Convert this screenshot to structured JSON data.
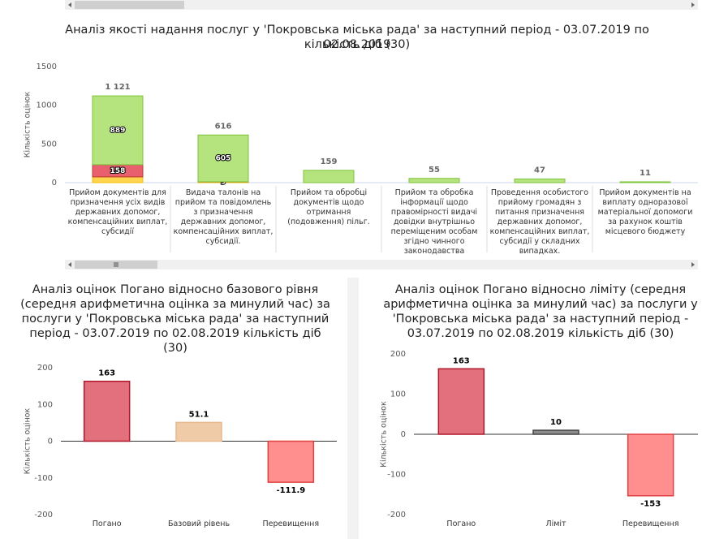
{
  "chart_data": [
    {
      "type": "stacked_bar",
      "title": "Аналіз якості надання послуг у 'Покровська міська рада' за наступний період - 03.07.2019 по 02.08.2019",
      "subtitle": "кількість діб (30)",
      "y_label": "Кількість оцінок",
      "categories": [
        "Прийом документів для призначення усіх видів державних допомог, компенсаційних виплат, субсидії",
        "Видача талонів на прийом та повідомлень з призначення державних допомог, компенсаційних виплат, субсидії.",
        "Прийом та обробці документів щодо отримання (подовження) пільг.",
        "Прийом та обробка інформації щодо правомірності видачі довідки внутрішньо переміщеним особам згідно чинного законодавства",
        "Проведення особистого прийому громадян з питання призначення державних допомог, компенсаційних виплат, субсидії у складних випадках.",
        "Прийом документів на виплату одноразової матеріальної допомоги за рахунок коштів місцевого бюджету"
      ],
      "series": [
        {
          "color": "#ffd54f",
          "values": [
            74,
            9,
            0,
            0,
            0,
            0
          ],
          "value_labels": [
            null,
            "9",
            null,
            null,
            null,
            null
          ]
        },
        {
          "color": "#e8606e",
          "values": [
            158,
            2,
            0,
            0,
            0,
            0
          ],
          "value_labels": [
            "158",
            null,
            null,
            null,
            null,
            null
          ]
        },
        {
          "color": "#b5e37d",
          "values": [
            889,
            605,
            159,
            55,
            47,
            11
          ],
          "value_labels": [
            "889",
            "605",
            null,
            null,
            null,
            null
          ]
        }
      ],
      "total_labels": [
        "1 121",
        "616",
        "159",
        "55",
        "47",
        "11"
      ],
      "ylim": [
        0,
        1500
      ],
      "yticks": [
        0,
        500,
        1000,
        1500
      ],
      "grid": false
    },
    {
      "type": "bar",
      "title": "Аналіз оцінок Погано відносно базового рівня (середня арифметична оцінка за минулий час) за послуги у 'Покровська міська рада' за наступний період - 03.07.2019 по 02.08.2019 кількість діб (30)",
      "y_label": "Кількість оцінок",
      "categories": [
        "Погано",
        "Базовий рівень",
        "Перевищення"
      ],
      "values": [
        163,
        51.1,
        -111.9
      ],
      "colors": [
        "#e2707d",
        "#f0cba8",
        "#ff8e8e"
      ],
      "ylim": [
        -200,
        200
      ],
      "yticks": [
        -200,
        -100,
        0,
        100,
        200
      ],
      "grid": false
    },
    {
      "type": "bar",
      "title": "Аналіз оцінок Погано відносно ліміту (середня арифметична оцінка за минулий час) за послуги у 'Покровська міська рада' за наступний період - 03.07.2019 по 02.08.2019 кількість діб (30)",
      "y_label": "Кількість оцінок",
      "categories": [
        "Погано",
        "Ліміт",
        "Перевищення"
      ],
      "values": [
        163,
        10,
        -153
      ],
      "colors": [
        "#e2707d",
        "#8c8c8c",
        "#ff8e8e"
      ],
      "ylim": [
        -200,
        200
      ],
      "yticks": [
        -200,
        -100,
        0,
        100,
        200
      ],
      "grid": false
    }
  ]
}
